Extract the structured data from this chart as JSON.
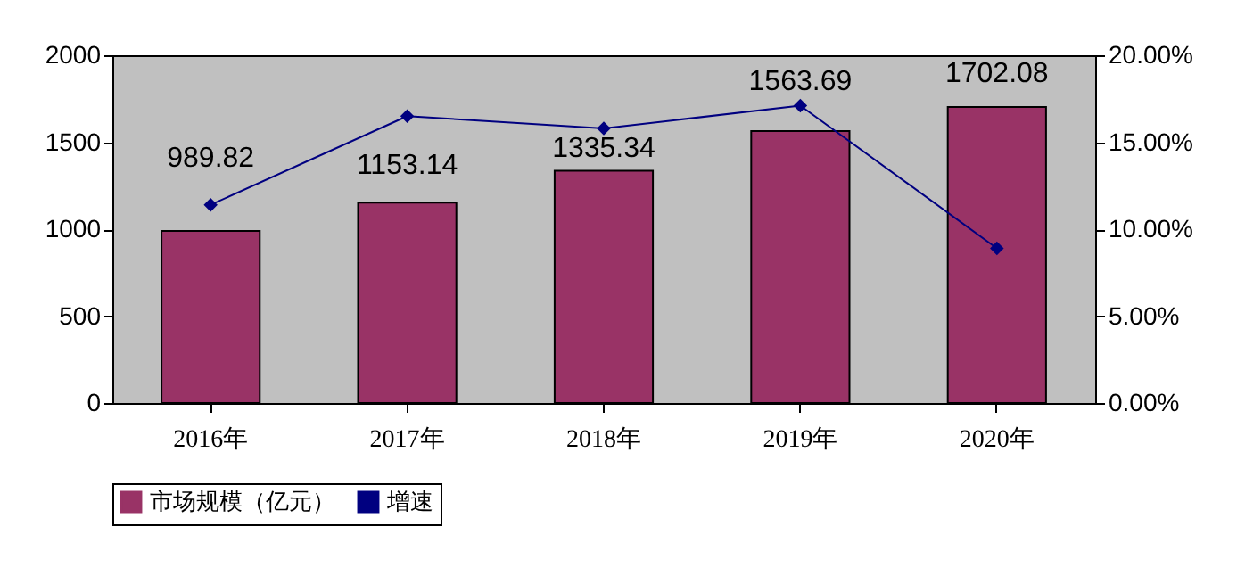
{
  "chart_data": {
    "type": "bar",
    "categories": [
      "2016年",
      "2017年",
      "2018年",
      "2019年",
      "2020年"
    ],
    "series": [
      {
        "name": "市场规模（亿元）",
        "color": "#993366",
        "values": [
          989.82,
          1153.14,
          1335.34,
          1563.69,
          1702.08
        ],
        "value_labels": [
          "989.82",
          "1153.14",
          "1335.34",
          "1563.69",
          "1702.08"
        ]
      },
      {
        "name": "增速",
        "type": "line",
        "axis": "y2",
        "color": "#000080",
        "marker": "diamond",
        "values": [
          11.4,
          16.5,
          15.8,
          17.1,
          8.9
        ]
      }
    ],
    "ylim": [
      0,
      2000
    ],
    "yticks": [
      0,
      500,
      1000,
      1500,
      2000
    ],
    "y2lim": [
      0,
      20
    ],
    "y2ticks": [
      {
        "value": 0,
        "label": "0.00%"
      },
      {
        "value": 5,
        "label": "5.00%"
      },
      {
        "value": 10,
        "label": "10.00%"
      },
      {
        "value": 15,
        "label": "15.00%"
      },
      {
        "value": 20,
        "label": "20.00%"
      }
    ],
    "legend": "bottom"
  }
}
